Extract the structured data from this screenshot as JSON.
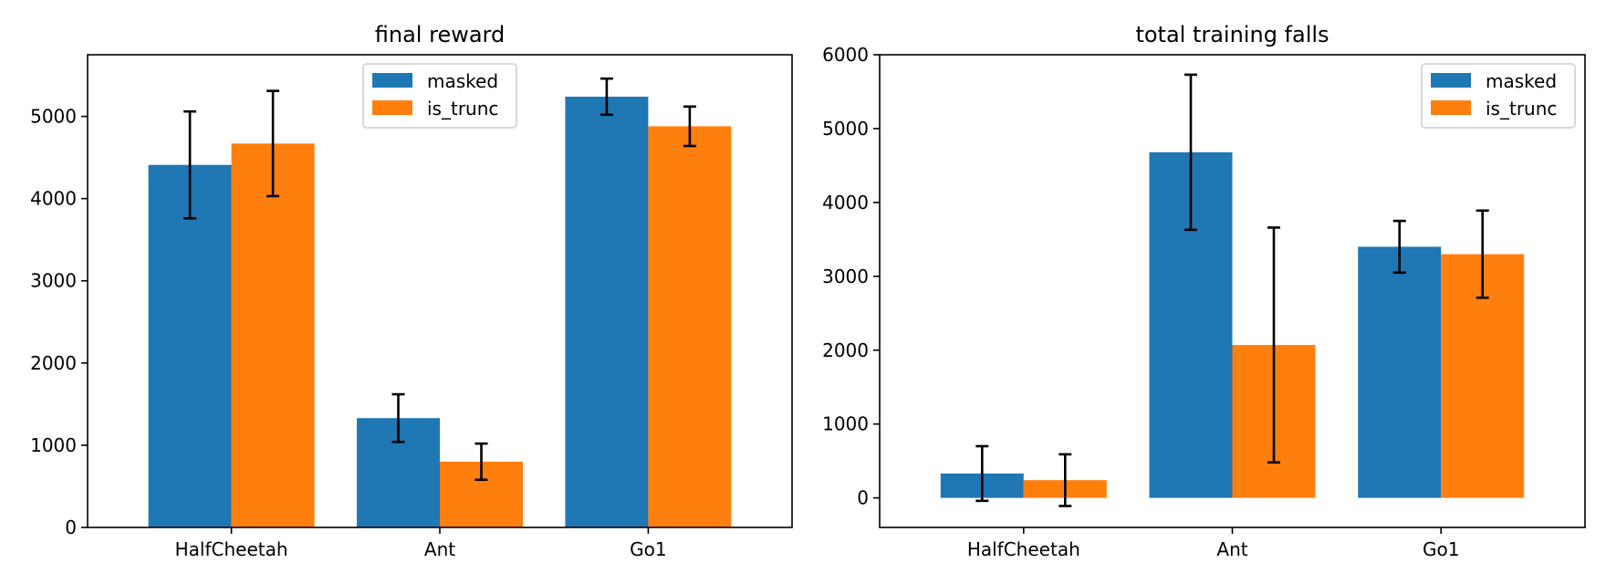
{
  "colors": {
    "masked": "#1f77b4",
    "is_trunc": "#ff7f0e"
  },
  "chart_data": [
    {
      "type": "bar",
      "title": "final reward",
      "categories": [
        "HalfCheetah",
        "Ant",
        "Go1"
      ],
      "series": [
        {
          "name": "masked",
          "values": [
            4410,
            1330,
            5240
          ],
          "errors": [
            650,
            290,
            220
          ]
        },
        {
          "name": "is_trunc",
          "values": [
            4670,
            800,
            4880
          ],
          "errors": [
            640,
            220,
            240
          ]
        }
      ],
      "ylim": [
        0,
        5750
      ],
      "yticks": [
        0,
        1000,
        2000,
        3000,
        4000,
        5000
      ],
      "legend": "top-center",
      "grid": false
    },
    {
      "type": "bar",
      "title": "total training falls",
      "categories": [
        "HalfCheetah",
        "Ant",
        "Go1"
      ],
      "series": [
        {
          "name": "masked",
          "values": [
            330,
            4680,
            3400
          ],
          "errors": [
            370,
            1050,
            350
          ]
        },
        {
          "name": "is_trunc",
          "values": [
            240,
            2070,
            3300
          ],
          "errors": [
            350,
            1590,
            590
          ]
        }
      ],
      "ylim": [
        -400,
        6000
      ],
      "yticks": [
        0,
        1000,
        2000,
        3000,
        4000,
        5000,
        6000
      ],
      "legend": "top-right",
      "grid": false
    }
  ]
}
